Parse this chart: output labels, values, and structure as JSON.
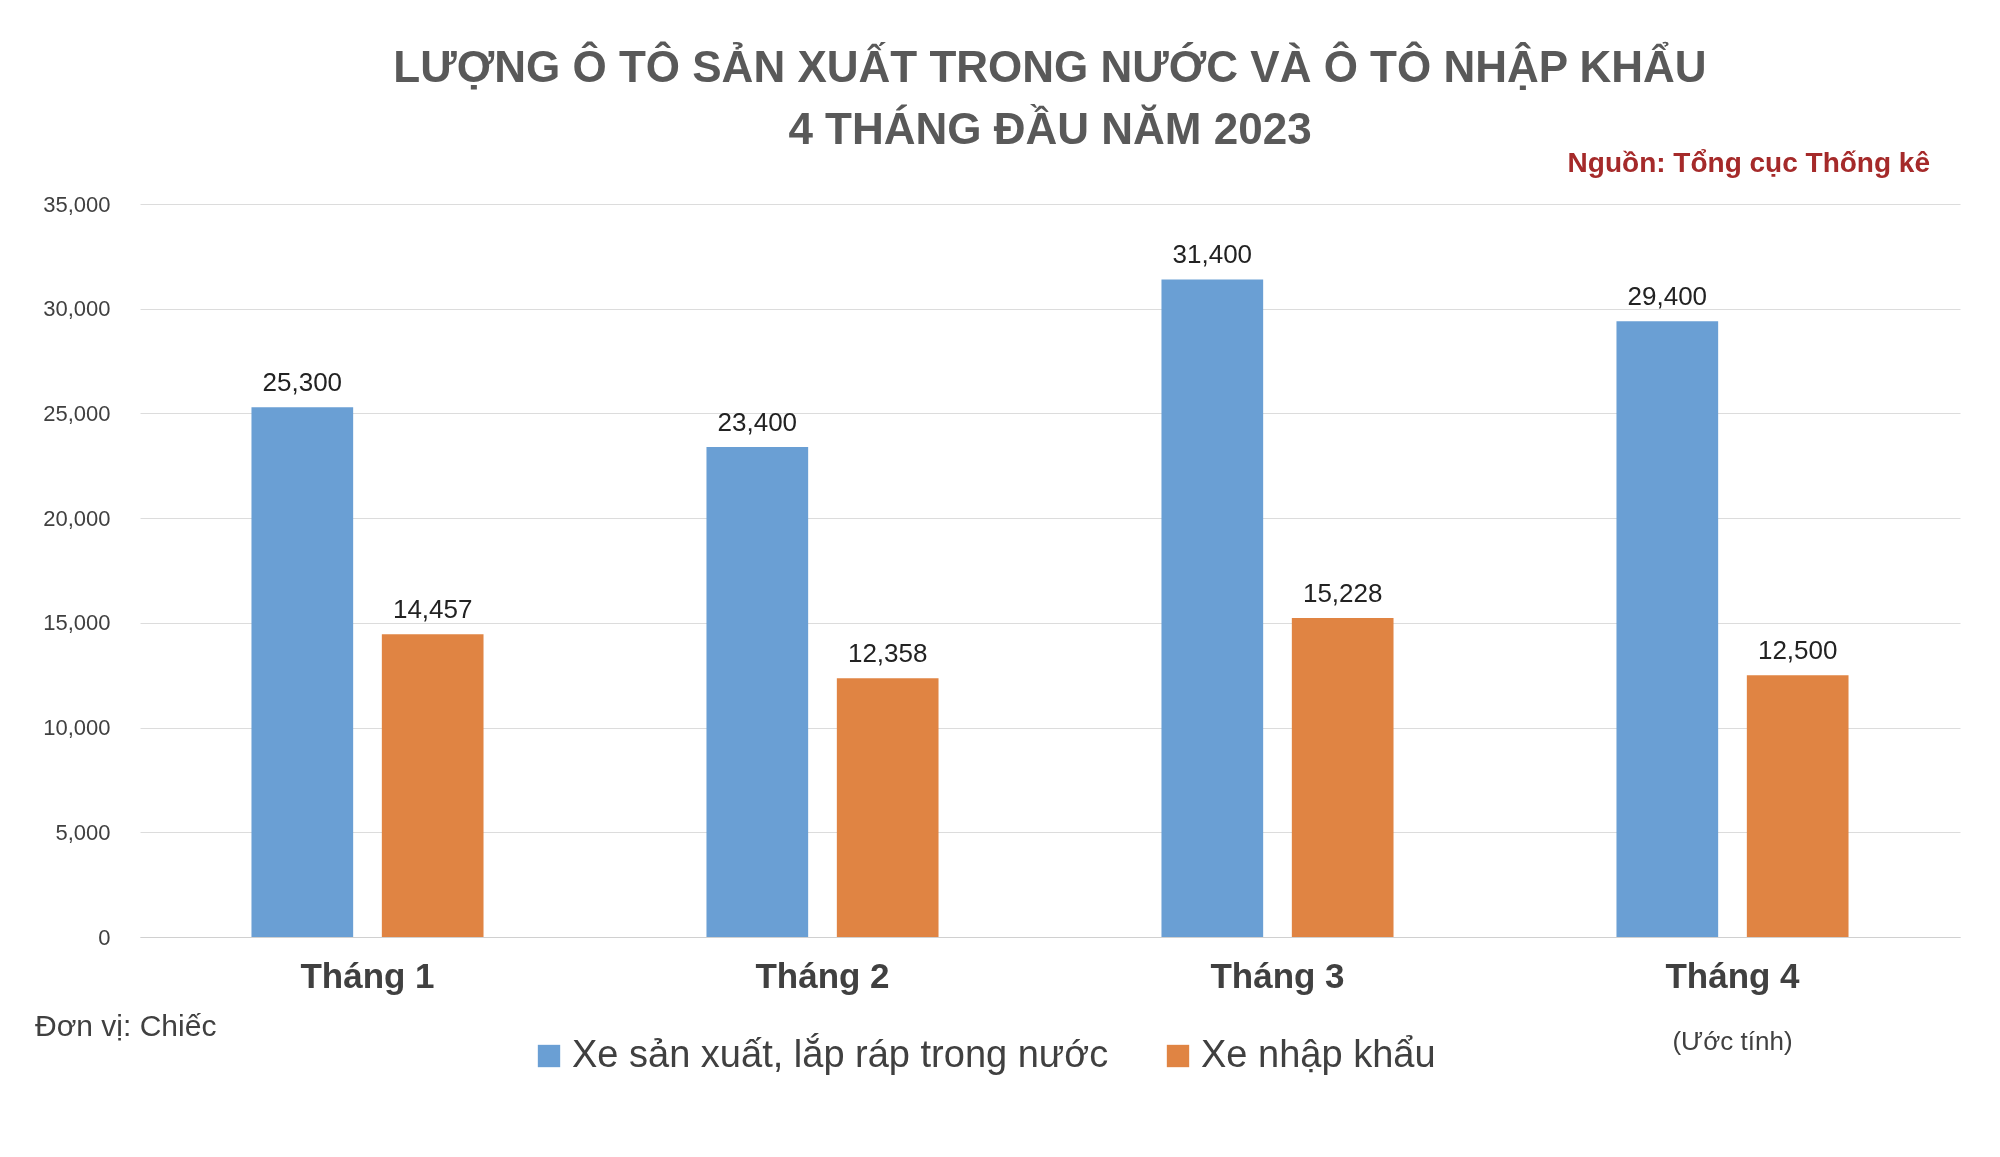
{
  "chart_data": {
    "type": "bar",
    "title": "LƯỢNG Ô TÔ SẢN XUẤT TRONG NƯỚC VÀ Ô TÔ NHẬP KHẨU\n4 THÁNG ĐẦU NĂM 2023",
    "categories": [
      "Tháng 1",
      "Tháng 2",
      "Tháng 3",
      "Tháng 4"
    ],
    "series": [
      {
        "name": "Xe sản xuất, lắp ráp trong nước",
        "color": "#6a9fd4",
        "values": [
          25300,
          23400,
          31400,
          29400
        ],
        "value_labels": [
          "25,300",
          "23,400",
          "31,400",
          "29,400"
        ]
      },
      {
        "name": "Xe nhập khẩu",
        "color": "#e08443",
        "values": [
          14457,
          12358,
          15228,
          12500
        ],
        "value_labels": [
          "14,457",
          "12,358",
          "15,228",
          "12,500"
        ]
      }
    ],
    "ylim": [
      0,
      35000
    ],
    "yticks": [
      0,
      {
        "value": 5000,
        "label": "5,000"
      },
      {
        "value": 10000,
        "label": "10,000"
      },
      {
        "value": 15000,
        "label": "15,000"
      },
      {
        "value": 20000,
        "label": "20,000"
      },
      {
        "value": 25000,
        "label": "25,000"
      },
      {
        "value": 30000,
        "label": "30,000"
      },
      {
        "value": 35000,
        "label": "35,000"
      }
    ],
    "grid": "y",
    "legend": "bottom",
    "annotations": [
      "Nguồn: Tổng cục Thống kê",
      "Đơn vị: Chiếc",
      "(Ước tính)"
    ]
  }
}
